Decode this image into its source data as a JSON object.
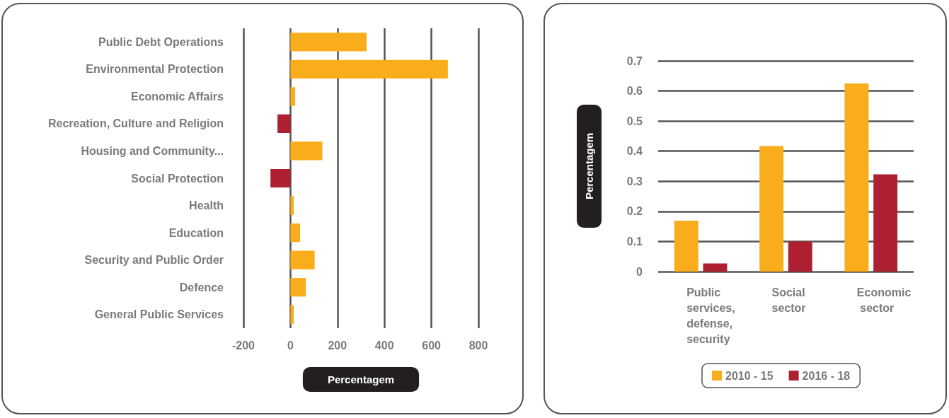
{
  "chart_data": [
    {
      "type": "bar",
      "orientation": "horizontal",
      "xlabel": "Percentagem",
      "categories": [
        "Public Debt Operations",
        "Environmental Protection",
        "Economic Affairs",
        "Recreation, Culture and Religion",
        "Housing and Community...",
        "Social Protection",
        "Health",
        "Education",
        "Security and Public Order",
        "Defence",
        "General Public Services"
      ],
      "values": [
        324,
        670,
        20,
        -55,
        136,
        -85,
        14,
        41,
        103,
        65,
        14
      ],
      "colors": [
        "#f9ad1b",
        "#f9ad1b",
        "#f9ad1b",
        "#ad1f31",
        "#f9ad1b",
        "#ad1f31",
        "#f9ad1b",
        "#f9ad1b",
        "#f9ad1b",
        "#f9ad1b",
        "#f9ad1b"
      ],
      "xlim": [
        -200,
        800
      ],
      "xticks": [
        -200,
        0,
        200,
        400,
        600,
        800
      ],
      "grid": "x",
      "legend": false
    },
    {
      "type": "bar",
      "ylabel": "Percentagem",
      "categories": [
        "Public services, defense, security",
        "Social sector",
        "Economic sector"
      ],
      "series": [
        {
          "name": "2010 - 15",
          "color": "#f9ad1b",
          "values": [
            0.169,
            0.417,
            0.625
          ]
        },
        {
          "name": "2016 - 18",
          "color": "#ad1f31",
          "values": [
            0.027,
            0.1,
            0.323
          ]
        }
      ],
      "ylim": [
        0,
        0.7
      ],
      "yticks": [
        0,
        0.1,
        0.2,
        0.3,
        0.4,
        0.5,
        0.6,
        0.7
      ],
      "grid": "y",
      "legend": "bottom"
    }
  ]
}
